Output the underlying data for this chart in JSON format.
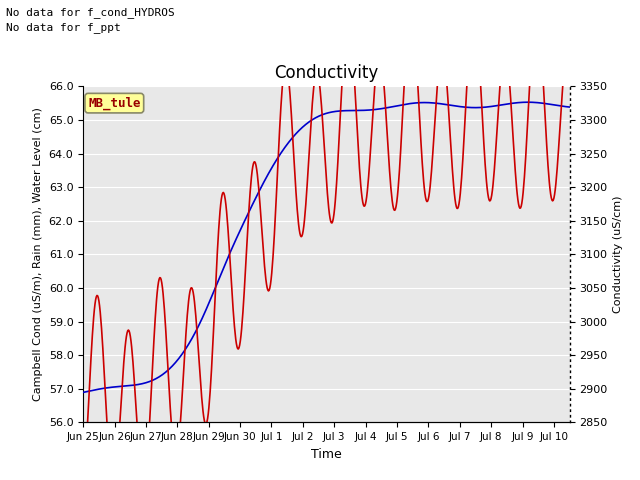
{
  "title": "Conductivity",
  "xlabel": "Time",
  "ylabel_left": "Campbell Cond (uS/m), Rain (mm), Water Level (cm)",
  "ylabel_right": "Conductivity (uS/cm)",
  "no_data_text_1": "No data for f_cond_HYDROS",
  "no_data_text_2": "No data for f_ppt",
  "label_box": "MB_tule",
  "ylim_left": [
    56.0,
    66.0
  ],
  "ylim_right": [
    2850,
    3350
  ],
  "yticks_left": [
    56.0,
    57.0,
    58.0,
    59.0,
    60.0,
    61.0,
    62.0,
    63.0,
    64.0,
    65.0,
    66.0
  ],
  "yticks_right": [
    2850,
    2900,
    2950,
    3000,
    3050,
    3100,
    3150,
    3200,
    3250,
    3300,
    3350
  ],
  "xtick_labels": [
    "Jun 25",
    "Jun 26",
    "Jun 27",
    "Jun 28",
    "Jun 29",
    "Jun 30",
    "Jul 1",
    "Jul 2",
    "Jul 3",
    "Jul 4",
    "Jul 5",
    "Jul 6",
    "Jul 7",
    "Jul 8",
    "Jul 9",
    "Jul 10"
  ],
  "background_color": "#e8e8e8",
  "grid_color": "#ffffff",
  "water_level_color": "#0000cc",
  "campbell_cond_color": "#cc0000",
  "xlim": [
    0,
    15.5
  ],
  "title_fontsize": 12,
  "axis_fontsize": 8,
  "tick_fontsize": 8
}
